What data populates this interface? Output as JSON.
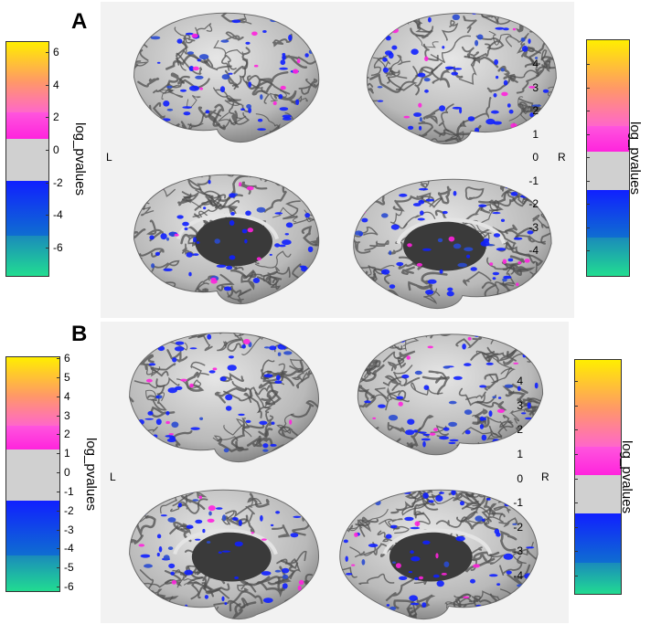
{
  "panels": [
    {
      "letter": "A",
      "left_label": "L",
      "right_label": "R",
      "left_colorbar": {
        "label": "log_pvalues",
        "ticks": [
          "6",
          "4",
          "2",
          "0",
          "-2",
          "-4",
          "-6"
        ]
      },
      "right_colorbar": {
        "label": "log_pvalues",
        "ticks": [
          "4",
          "3",
          "2",
          "1",
          "0",
          "-1",
          "-2",
          "-3",
          "-4"
        ]
      }
    },
    {
      "letter": "B",
      "left_label": "L",
      "right_label": "R",
      "left_colorbar": {
        "label": "log_pvalues",
        "ticks": [
          "6",
          "5",
          "4",
          "3",
          "2",
          "1",
          "0",
          "-1",
          "-2",
          "-3",
          "-4",
          "-5",
          "-6"
        ]
      },
      "right_colorbar": {
        "label": "log_pvalues",
        "ticks": [
          "4",
          "3",
          "2",
          "1",
          "0",
          "-1",
          "-2",
          "-3",
          "-4"
        ]
      }
    }
  ],
  "colors": {
    "panel_background": "#f2f2f2",
    "brain_surface": "#b9b9b9",
    "brain_medial_wall": "#3a3a3a",
    "colormap_top": "#ffee00",
    "colormap_orange": "#ff9966",
    "colormap_magenta": "#ff22dd",
    "colormap_gray": "#d0d0d0",
    "colormap_blue": "#1020ff",
    "colormap_bottom": "#22e28e"
  }
}
